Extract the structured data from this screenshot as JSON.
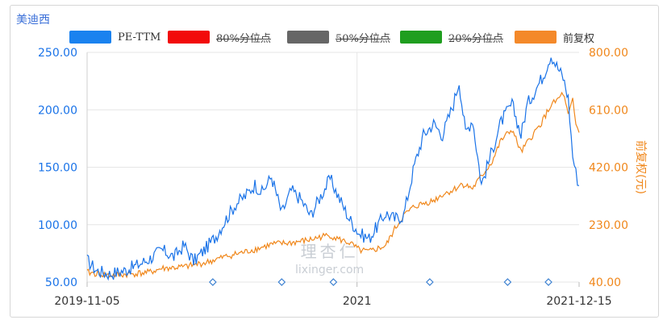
{
  "chart_title": "美迪西",
  "colors": {
    "pe": "#1a73e8",
    "price": "#f0871b",
    "p80": "#ff0000",
    "p50": "#666666",
    "p20": "#1a9c1a",
    "grid": "#e6e6e6",
    "left_axis_text": "#1a73e8",
    "right_axis_text": "#f0871b",
    "marker": "#3a7fd0"
  },
  "legend": [
    {
      "label": "PE-TTM",
      "color": "#1a82ef",
      "enabled": true
    },
    {
      "label": "80%分位点",
      "color": "#f20b0b",
      "enabled": false
    },
    {
      "label": "50%分位点",
      "color": "#666666",
      "enabled": false
    },
    {
      "label": "20%分位点",
      "color": "#1f9e1f",
      "enabled": false
    },
    {
      "label": "前复权",
      "color": "#f4892a",
      "enabled": true
    }
  ],
  "watermark": {
    "line1": "理杏仁",
    "line2": "lixinger.com"
  },
  "chart_data": {
    "type": "line",
    "x_range": [
      "2019-11-05",
      "2021-12-15"
    ],
    "x_tick_labels": [
      "2019-11-05",
      "2021",
      "2021-12-15"
    ],
    "left_axis": {
      "ticks": [
        "50.00",
        "100.00",
        "150.00",
        "200.00",
        "250.00"
      ],
      "range": [
        50,
        250
      ]
    },
    "right_axis": {
      "label": "前复权(元)",
      "ticks": [
        "40.00",
        "230.00",
        "420.00",
        "610.00",
        "800.00"
      ],
      "range": [
        40,
        800
      ]
    },
    "series": [
      {
        "name": "PE-TTM",
        "axis": "left",
        "points": [
          [
            "2019-11-05",
            69
          ],
          [
            "2019-11-20",
            60
          ],
          [
            "2019-12-10",
            57
          ],
          [
            "2020-01-02",
            60
          ],
          [
            "2020-01-20",
            64
          ],
          [
            "2020-02-10",
            70
          ],
          [
            "2020-03-01",
            78
          ],
          [
            "2020-03-20",
            72
          ],
          [
            "2020-04-05",
            82
          ],
          [
            "2020-04-20",
            68
          ],
          [
            "2020-05-10",
            80
          ],
          [
            "2020-05-25",
            90
          ],
          [
            "2020-06-10",
            105
          ],
          [
            "2020-06-25",
            118
          ],
          [
            "2020-07-10",
            125
          ],
          [
            "2020-07-25",
            135
          ],
          [
            "2020-08-05",
            128
          ],
          [
            "2020-08-20",
            142
          ],
          [
            "2020-09-05",
            110
          ],
          [
            "2020-09-20",
            130
          ],
          [
            "2020-10-05",
            122
          ],
          [
            "2020-10-20",
            108
          ],
          [
            "2020-11-05",
            125
          ],
          [
            "2020-11-20",
            140
          ],
          [
            "2020-12-05",
            122
          ],
          [
            "2020-12-20",
            105
          ],
          [
            "2021-01-05",
            92
          ],
          [
            "2021-01-20",
            88
          ],
          [
            "2021-02-01",
            98
          ],
          [
            "2021-02-15",
            110
          ],
          [
            "2021-03-01",
            105
          ],
          [
            "2021-03-15",
            108
          ],
          [
            "2021-04-01",
            152
          ],
          [
            "2021-04-15",
            178
          ],
          [
            "2021-05-01",
            188
          ],
          [
            "2021-05-15",
            178
          ],
          [
            "2021-06-01",
            205
          ],
          [
            "2021-06-10",
            225
          ],
          [
            "2021-06-20",
            180
          ],
          [
            "2021-07-01",
            192
          ],
          [
            "2021-07-15",
            135
          ],
          [
            "2021-08-01",
            165
          ],
          [
            "2021-08-15",
            190
          ],
          [
            "2021-09-01",
            205
          ],
          [
            "2021-09-15",
            178
          ],
          [
            "2021-09-25",
            205
          ],
          [
            "2021-10-05",
            215
          ],
          [
            "2021-10-20",
            230
          ],
          [
            "2021-11-01",
            248
          ],
          [
            "2021-11-10",
            238
          ],
          [
            "2021-11-20",
            228
          ],
          [
            "2021-11-28",
            210
          ],
          [
            "2021-12-05",
            160
          ],
          [
            "2021-12-10",
            145
          ],
          [
            "2021-12-15",
            134
          ]
        ]
      },
      {
        "name": "前复权",
        "axis": "right",
        "points": [
          [
            "2019-11-05",
            72
          ],
          [
            "2019-12-10",
            62
          ],
          [
            "2020-01-02",
            65
          ],
          [
            "2020-02-10",
            72
          ],
          [
            "2020-03-01",
            85
          ],
          [
            "2020-04-05",
            90
          ],
          [
            "2020-05-10",
            105
          ],
          [
            "2020-06-10",
            125
          ],
          [
            "2020-07-10",
            140
          ],
          [
            "2020-08-05",
            155
          ],
          [
            "2020-08-20",
            165
          ],
          [
            "2020-09-20",
            170
          ],
          [
            "2020-10-20",
            180
          ],
          [
            "2020-11-05",
            190
          ],
          [
            "2020-11-20",
            195
          ],
          [
            "2020-12-05",
            180
          ],
          [
            "2020-12-20",
            170
          ],
          [
            "2021-01-05",
            145
          ],
          [
            "2021-01-20",
            140
          ],
          [
            "2021-02-01",
            150
          ],
          [
            "2021-02-15",
            160
          ],
          [
            "2021-03-01",
            215
          ],
          [
            "2021-03-15",
            260
          ],
          [
            "2021-04-01",
            290
          ],
          [
            "2021-04-15",
            300
          ],
          [
            "2021-05-01",
            310
          ],
          [
            "2021-05-15",
            330
          ],
          [
            "2021-06-01",
            345
          ],
          [
            "2021-06-15",
            365
          ],
          [
            "2021-07-01",
            350
          ],
          [
            "2021-07-15",
            390
          ],
          [
            "2021-08-01",
            440
          ],
          [
            "2021-08-15",
            510
          ],
          [
            "2021-09-01",
            545
          ],
          [
            "2021-09-15",
            470
          ],
          [
            "2021-10-01",
            520
          ],
          [
            "2021-10-15",
            560
          ],
          [
            "2021-11-01",
            625
          ],
          [
            "2021-11-10",
            640
          ],
          [
            "2021-11-20",
            665
          ],
          [
            "2021-11-28",
            590
          ],
          [
            "2021-12-05",
            640
          ],
          [
            "2021-12-10",
            560
          ],
          [
            "2021-12-15",
            535
          ]
        ]
      }
    ],
    "event_markers": [
      "2020-05-20",
      "2020-09-05",
      "2020-11-25",
      "2021-04-25",
      "2021-08-25",
      "2021-10-28"
    ]
  }
}
